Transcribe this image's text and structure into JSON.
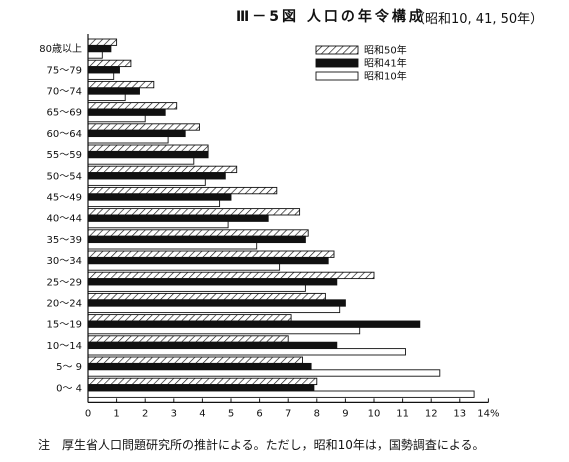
{
  "title": "Ⅲ－5図 人口の年令構成",
  "subtitle": "（昭和10, 41, 50年）",
  "note": "注　厚生省人口問題研究所の推計による。ただし，昭和10年は，国勢調査による。",
  "chart_data": {
    "type": "bar",
    "orientation": "horizontal",
    "x_unit": "%",
    "xlim": [
      0,
      14
    ],
    "x_ticks": [
      "0",
      "1",
      "2",
      "3",
      "4",
      "5",
      "6",
      "7",
      "8",
      "9",
      "10",
      "11",
      "12",
      "13",
      "14%"
    ],
    "categories": [
      "80歳以上",
      "75～79",
      "70～74",
      "65～69",
      "60～64",
      "55～59",
      "50～54",
      "45～49",
      "40～44",
      "35～39",
      "30～34",
      "25～29",
      "20～24",
      "15～19",
      "10～14",
      "5～ 9",
      "0～ 4"
    ],
    "series": [
      {
        "name": "昭和50年",
        "style": "hatched",
        "values": [
          1.0,
          1.5,
          2.3,
          3.1,
          3.9,
          4.2,
          5.2,
          6.6,
          7.4,
          7.7,
          8.6,
          10.0,
          8.3,
          7.1,
          7.0,
          7.5,
          8.0
        ]
      },
      {
        "name": "昭和41年",
        "style": "solid",
        "values": [
          0.8,
          1.1,
          1.8,
          2.7,
          3.4,
          4.2,
          4.8,
          5.0,
          6.3,
          7.6,
          8.4,
          8.7,
          9.0,
          11.6,
          8.7,
          7.8,
          7.9
        ]
      },
      {
        "name": "昭和10年",
        "style": "outline",
        "values": [
          0.5,
          0.9,
          1.3,
          2.0,
          2.8,
          3.7,
          4.1,
          4.6,
          4.9,
          5.9,
          6.7,
          7.6,
          8.8,
          9.5,
          11.1,
          12.3,
          13.5
        ]
      }
    ]
  }
}
